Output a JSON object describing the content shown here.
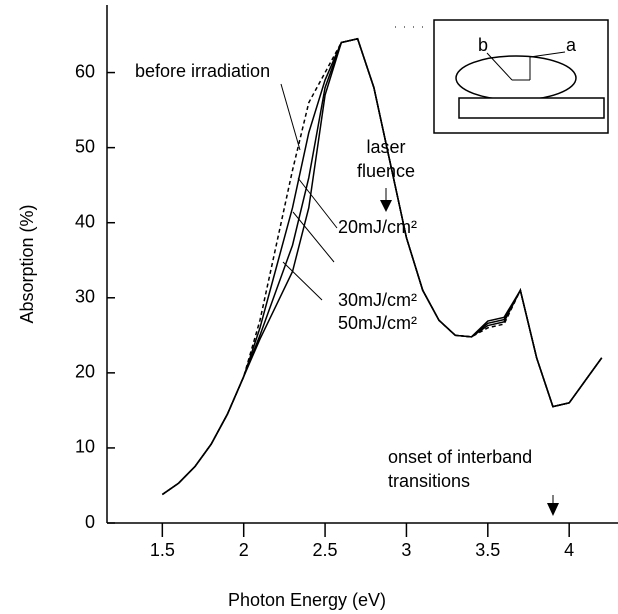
{
  "chart_data": {
    "type": "line",
    "x_label": "Photon Energy (eV)",
    "y_label": "Absorption (%)",
    "x": [
      1.5,
      1.6,
      1.7,
      1.8,
      1.9,
      2.0,
      2.1,
      2.2,
      2.3,
      2.4,
      2.5,
      2.6,
      2.7,
      2.8,
      2.9,
      3.0,
      3.1,
      3.2,
      3.3,
      3.4,
      3.5,
      3.6,
      3.7,
      3.8,
      3.9,
      4.0,
      4.1,
      4.2
    ],
    "series": [
      {
        "name": "before irradiation",
        "color": "#000000",
        "dashed": true,
        "values": [
          3.8,
          5.3,
          7.5,
          10.5,
          14.5,
          19.5,
          27,
          37,
          47,
          56,
          60,
          64,
          64.5,
          58,
          48,
          38,
          31,
          27,
          25,
          24.8,
          26,
          26.5,
          31,
          22,
          15.5,
          16,
          19,
          22
        ]
      },
      {
        "name": "20mJ/cm²",
        "color": "#000000",
        "dashed": false,
        "values": [
          3.8,
          5.3,
          7.5,
          10.5,
          14.5,
          19.5,
          26,
          34,
          42,
          52,
          59,
          64,
          64.5,
          58,
          48,
          38,
          31,
          27,
          25,
          24.8,
          26.3,
          26.8,
          31,
          22,
          15.5,
          16,
          19,
          22
        ]
      },
      {
        "name": "30mJ/cm²",
        "color": "#000000",
        "dashed": false,
        "values": [
          3.8,
          5.3,
          7.5,
          10.5,
          14.5,
          19.5,
          25,
          31,
          37,
          46,
          58,
          64,
          64.5,
          58,
          48,
          38,
          31,
          27,
          25,
          24.8,
          26.6,
          27.1,
          31,
          22,
          15.5,
          16,
          19,
          22
        ]
      },
      {
        "name": "50mJ/cm²",
        "color": "#000000",
        "dashed": false,
        "values": [
          3.8,
          5.3,
          7.5,
          10.5,
          14.5,
          19.5,
          24.5,
          29,
          33.5,
          42,
          57,
          64,
          64.5,
          58,
          48,
          38,
          31,
          27,
          25,
          24.8,
          26.9,
          27.4,
          31,
          22,
          15.5,
          16,
          19,
          22
        ]
      }
    ],
    "xlim": [
      1.16,
      4.3
    ],
    "ylim": [
      0,
      69
    ],
    "xticks": [
      1.5,
      2.0,
      2.5,
      3.0,
      3.5,
      4.0
    ],
    "yticks": [
      0,
      10,
      20,
      30,
      40,
      50,
      60
    ],
    "annotations": [
      {
        "lines": [
          "laser",
          "fluence"
        ]
      },
      {
        "lines": [
          "onset of interband",
          "transitions"
        ]
      }
    ],
    "inset_labels": [
      "b",
      "a"
    ]
  }
}
